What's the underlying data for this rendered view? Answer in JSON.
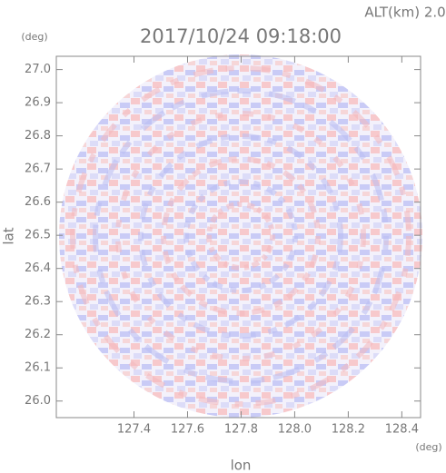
{
  "chart_data": {
    "type": "radar-ppi",
    "title": "2017/10/24 09:18:00",
    "subtitle": "ALT(km) 2.0",
    "x_label": "lon",
    "y_label": "lat",
    "x_unit": "(deg)",
    "y_unit": "(deg)",
    "xlim": [
      127.11,
      128.47
    ],
    "ylim": [
      25.95,
      27.04
    ],
    "xticks": [
      127.4,
      127.6,
      127.8,
      {
        "value": 128.0,
        "label": "128.0"
      },
      128.2,
      128.4
    ],
    "yticks": [
      {
        "value": 26.0,
        "label": "26.0"
      },
      26.1,
      26.2,
      26.3,
      26.4,
      26.5,
      26.6,
      26.7,
      26.8,
      26.9,
      {
        "value": 27.0,
        "label": "27.0"
      }
    ]
  }
}
